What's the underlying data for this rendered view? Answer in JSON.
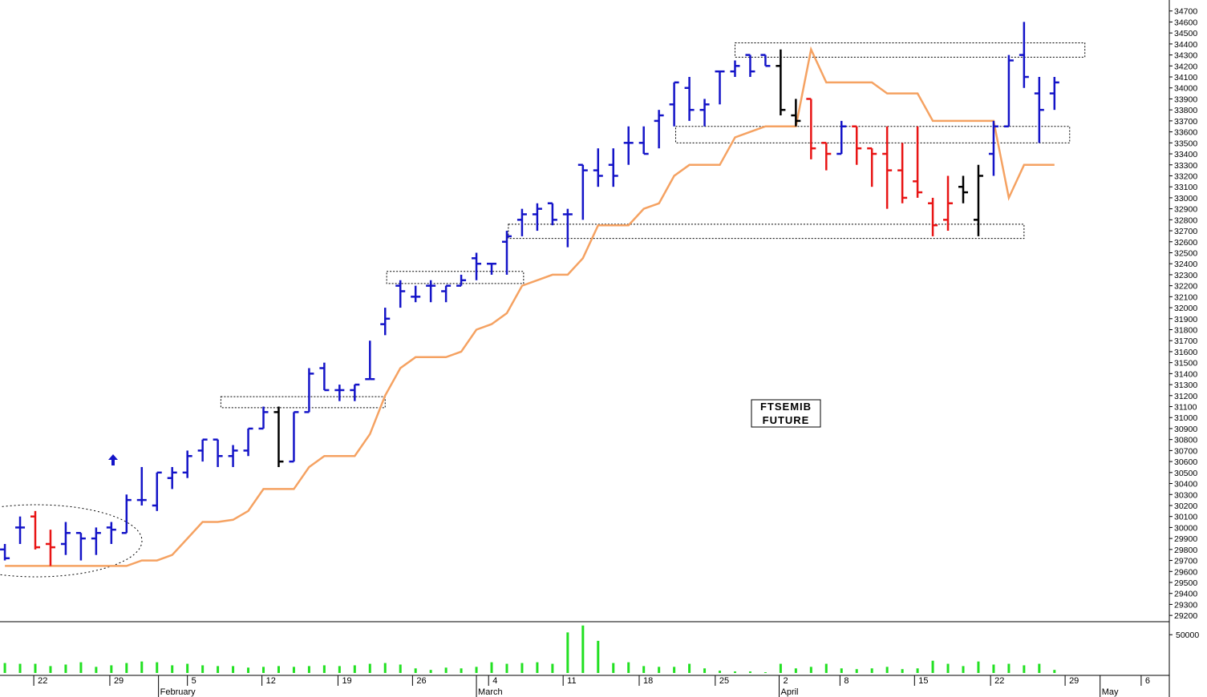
{
  "chart_data": {
    "type": "ohlc",
    "annotation": [
      "FTSEMIB",
      "FUTURE"
    ],
    "xlim": [
      -0.32,
      76.55
    ],
    "xticks": [
      {
        "value": 1.9,
        "label": "22"
      },
      {
        "value": 6.9,
        "label": "29"
      },
      {
        "value": 12.0,
        "label": "5"
      },
      {
        "value": 16.9,
        "label": "12"
      },
      {
        "value": 21.9,
        "label": "19"
      },
      {
        "value": 26.8,
        "label": "26"
      },
      {
        "value": 31.8,
        "label": "4"
      },
      {
        "value": 36.7,
        "label": "11"
      },
      {
        "value": 41.7,
        "label": "18"
      },
      {
        "value": 46.7,
        "label": "25"
      },
      {
        "value": 50.9,
        "label": "2"
      },
      {
        "value": 54.9,
        "label": "8"
      },
      {
        "value": 59.8,
        "label": "15"
      },
      {
        "value": 64.8,
        "label": "22"
      },
      {
        "value": 69.7,
        "label": "29"
      },
      {
        "value": 74.7,
        "label": "6"
      }
    ],
    "months": [
      {
        "value": 10.1,
        "label": "February"
      },
      {
        "value": 31.0,
        "label": "March"
      },
      {
        "value": 50.9,
        "label": "April"
      },
      {
        "value": 72.0,
        "label": "May"
      }
    ],
    "ylim": [
      29150,
      34800
    ],
    "yticks": [
      29200,
      29300,
      29400,
      29500,
      29600,
      29700,
      29800,
      29900,
      30000,
      30100,
      30200,
      30300,
      30400,
      30500,
      30600,
      30700,
      30800,
      30900,
      31000,
      31100,
      31200,
      31300,
      31400,
      31500,
      31600,
      31700,
      31800,
      31900,
      32000,
      32100,
      32200,
      32300,
      32400,
      32500,
      32600,
      32700,
      32800,
      32900,
      33000,
      33100,
      33200,
      33300,
      33400,
      33500,
      33600,
      33700,
      33800,
      33900,
      34000,
      34100,
      34200,
      34300,
      34400,
      34500,
      34600,
      34700
    ],
    "open": [
      29800,
      30000,
      30100,
      29850,
      29850,
      29950,
      29900,
      30000,
      29950,
      30250,
      30200,
      30450,
      30500,
      30700,
      30800,
      30650,
      30700,
      30900,
      31050,
      30600,
      31050,
      31450,
      31250,
      31250,
      31350,
      31850,
      32200,
      32100,
      32200,
      32150,
      32200,
      32450,
      32400,
      32600,
      32800,
      32850,
      32950,
      32850,
      33300,
      33250,
      33300,
      33500,
      33500,
      33700,
      33850,
      34000,
      33800,
      34150,
      34150,
      34300,
      34300,
      34200,
      33750,
      33900,
      33500,
      33400,
      33650,
      33450,
      33400,
      33250,
      33150,
      32950,
      32800,
      33100,
      32800,
      33400,
      33650,
      34300,
      33950,
      33950
    ],
    "high": [
      29850,
      30100,
      30150,
      29980,
      30050,
      29950,
      30000,
      30050,
      30300,
      30550,
      30500,
      30550,
      30700,
      30800,
      30800,
      30750,
      30900,
      31100,
      31100,
      31050,
      31450,
      31500,
      31300,
      31300,
      31700,
      32000,
      32250,
      32200,
      32250,
      32200,
      32300,
      32500,
      32400,
      32700,
      32900,
      32950,
      32950,
      32900,
      33300,
      33450,
      33450,
      33650,
      33650,
      33800,
      34050,
      34100,
      33900,
      34150,
      34250,
      34300,
      34300,
      34350,
      33900,
      33900,
      33500,
      33700,
      33650,
      33450,
      33650,
      33500,
      33650,
      33000,
      33200,
      33200,
      33300,
      33700,
      34300,
      34600,
      34100,
      34100
    ],
    "low": [
      29700,
      29850,
      29800,
      29650,
      29750,
      29700,
      29750,
      29850,
      29950,
      30200,
      30150,
      30350,
      30450,
      30600,
      30550,
      30550,
      30650,
      30900,
      30550,
      30600,
      31050,
      31250,
      31150,
      31150,
      31350,
      31750,
      32000,
      32050,
      32050,
      32050,
      32200,
      32250,
      32300,
      32300,
      32650,
      32700,
      32750,
      32550,
      32800,
      33100,
      33100,
      33300,
      33400,
      33450,
      33650,
      33700,
      33650,
      33850,
      34100,
      34100,
      34200,
      33750,
      33650,
      33350,
      33250,
      33400,
      33300,
      33100,
      32900,
      32950,
      33000,
      32650,
      32700,
      32950,
      32650,
      33200,
      33650,
      34000,
      33500,
      33800
    ],
    "close": [
      29720,
      30000,
      29820,
      29820,
      29950,
      29900,
      29950,
      29980,
      30250,
      30250,
      30500,
      30500,
      30650,
      30800,
      30650,
      30700,
      30900,
      31050,
      30600,
      31050,
      31400,
      31250,
      31250,
      31300,
      31350,
      31900,
      32150,
      32100,
      32200,
      32200,
      32250,
      32400,
      32400,
      32650,
      32850,
      32900,
      32800,
      32850,
      33250,
      33200,
      33200,
      33500,
      33400,
      33750,
      34050,
      33800,
      33850,
      34150,
      34200,
      34150,
      34200,
      33800,
      33700,
      33450,
      33400,
      33650,
      33450,
      33400,
      33250,
      33000,
      33050,
      32750,
      32950,
      33050,
      33200,
      33650,
      34250,
      34100,
      33800,
      34050
    ],
    "colors": [
      "#1414c8",
      "#1414c8",
      "#e81414",
      "#e81414",
      "#1414c8",
      "#1414c8",
      "#1414c8",
      "#1414c8",
      "#1414c8",
      "#1414c8",
      "#1414c8",
      "#1414c8",
      "#1414c8",
      "#1414c8",
      "#1414c8",
      "#1414c8",
      "#1414c8",
      "#1414c8",
      "#000000",
      "#1414c8",
      "#1414c8",
      "#1414c8",
      "#1414c8",
      "#1414c8",
      "#1414c8",
      "#1414c8",
      "#1414c8",
      "#1414c8",
      "#1414c8",
      "#1414c8",
      "#1414c8",
      "#1414c8",
      "#1414c8",
      "#1414c8",
      "#1414c8",
      "#1414c8",
      "#1414c8",
      "#1414c8",
      "#1414c8",
      "#1414c8",
      "#1414c8",
      "#1414c8",
      "#1414c8",
      "#1414c8",
      "#1414c8",
      "#1414c8",
      "#1414c8",
      "#1414c8",
      "#1414c8",
      "#1414c8",
      "#1414c8",
      "#000000",
      "#000000",
      "#e81414",
      "#e81414",
      "#1414c8",
      "#e81414",
      "#e81414",
      "#e81414",
      "#e81414",
      "#e81414",
      "#e81414",
      "#e81414",
      "#000000",
      "#000000",
      "#1414c8",
      "#1414c8",
      "#1414c8",
      "#1414c8",
      "#1414c8"
    ],
    "trail": {
      "color": "#f5a262",
      "values": [
        29650,
        29650,
        29650,
        29650,
        29650,
        29650,
        29650,
        29650,
        29650,
        29700,
        29700,
        29750,
        29900,
        30050,
        30050,
        30070,
        30150,
        30350,
        30350,
        30350,
        30550,
        30650,
        30650,
        30650,
        30850,
        31200,
        31450,
        31550,
        31550,
        31550,
        31600,
        31800,
        31850,
        31950,
        32200,
        32250,
        32300,
        32300,
        32450,
        32750,
        32750,
        32750,
        32900,
        32950,
        33200,
        33300,
        33300,
        33300,
        33550,
        33600,
        33650,
        33650,
        33650,
        34350,
        34050,
        34050,
        34050,
        34050,
        33950,
        33950,
        33950,
        33700,
        33700,
        33700,
        33700,
        33700,
        33000,
        33300,
        33300,
        33300
      ]
    },
    "zones": [
      {
        "from": 14.2,
        "to": 25.0,
        "low": 31090,
        "high": 31190
      },
      {
        "from": 25.1,
        "to": 34.1,
        "low": 32220,
        "high": 32330
      },
      {
        "from": 33.1,
        "to": 67.0,
        "low": 32630,
        "high": 32760
      },
      {
        "from": 44.1,
        "to": 70.0,
        "low": 33500,
        "high": 33650
      },
      {
        "from": 48.0,
        "to": 71.0,
        "low": 34280,
        "high": 34410
      }
    ],
    "volume": {
      "color": "#22e022",
      "ylim": [
        0,
        67000
      ],
      "yticks": [
        50000
      ],
      "values": [
        13000,
        12000,
        12000,
        9000,
        11000,
        14000,
        8000,
        10000,
        13000,
        15000,
        14000,
        10000,
        12000,
        10000,
        9000,
        9000,
        7000,
        8000,
        9000,
        8000,
        9000,
        10000,
        9000,
        10000,
        12000,
        13000,
        11000,
        6000,
        4000,
        7000,
        6000,
        8000,
        14000,
        12000,
        13000,
        14000,
        12000,
        53000,
        62000,
        42000,
        13000,
        14000,
        9000,
        8000,
        8000,
        12000,
        6000,
        3000,
        2000,
        2000,
        1000,
        12000,
        6000,
        8000,
        12000,
        6000,
        5000,
        6000,
        8000,
        5000,
        6000,
        16000,
        12000,
        9000,
        15000,
        11000,
        12000,
        10000,
        12000,
        4000
      ]
    }
  }
}
